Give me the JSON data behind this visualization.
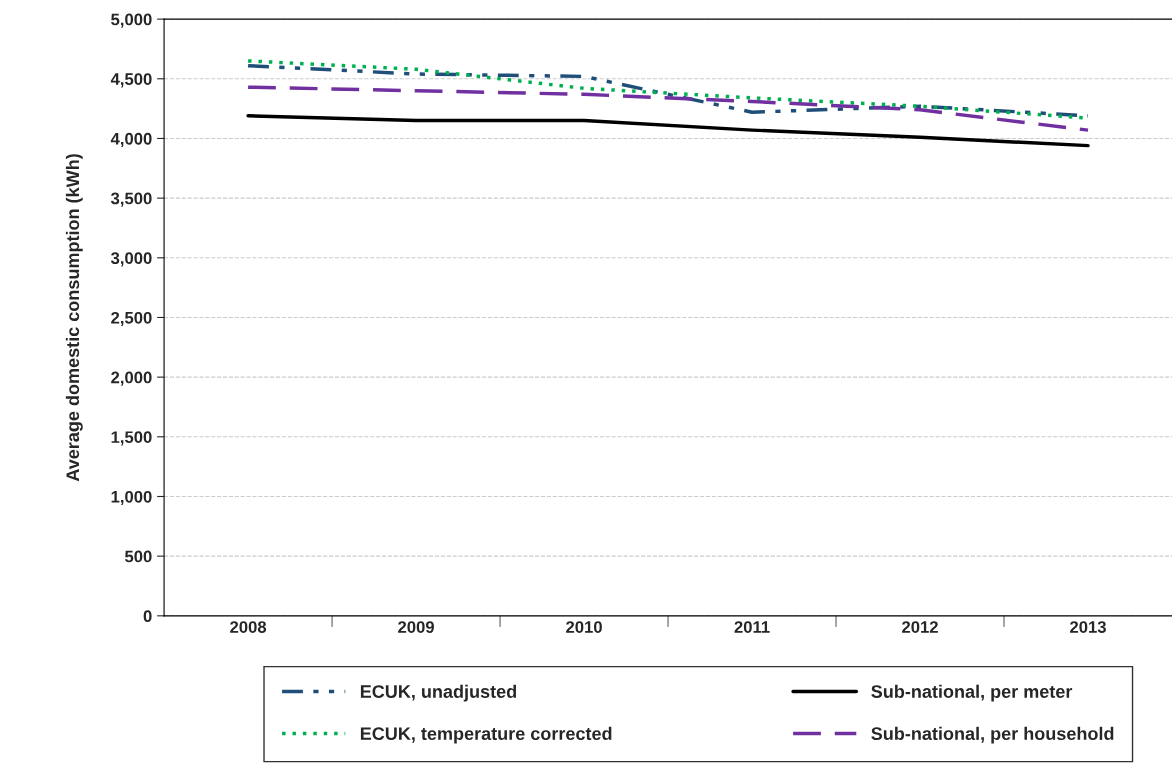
{
  "chart_data": {
    "type": "line",
    "ylabel": "Average domestic consumption (kWh)",
    "categories": [
      "2008",
      "2009",
      "2010",
      "2011",
      "2012",
      "2013"
    ],
    "series": [
      {
        "name": "ECUK, unadjusted",
        "color": "#1f4e79",
        "line_style": "dashdot",
        "values": [
          4610,
          4540,
          4520,
          4220,
          4270,
          4190
        ]
      },
      {
        "name": "ECUK, temperature corrected",
        "color": "#00b050",
        "line_style": "dotted",
        "values": [
          4650,
          4580,
          4420,
          4340,
          4270,
          4170
        ]
      },
      {
        "name": "Sub-national, per meter",
        "color": "#000000",
        "line_style": "solid",
        "values": [
          4190,
          4150,
          4150,
          4070,
          4010,
          3940
        ]
      },
      {
        "name": "Sub-national, per household",
        "color": "#7030a0",
        "line_style": "dashed",
        "values": [
          4430,
          4400,
          4370,
          4310,
          4240,
          4070
        ]
      }
    ],
    "ylim": [
      0,
      5000
    ],
    "yticks": [
      {
        "value": 0,
        "label": "0"
      },
      {
        "value": 500,
        "label": "500"
      },
      {
        "value": 1000,
        "label": "1,000"
      },
      {
        "value": 1500,
        "label": "1,500"
      },
      {
        "value": 2000,
        "label": "2,000"
      },
      {
        "value": 2500,
        "label": "2,500"
      },
      {
        "value": 3000,
        "label": "3,000"
      },
      {
        "value": 3500,
        "label": "3,500"
      },
      {
        "value": 4000,
        "label": "4,000"
      },
      {
        "value": 4500,
        "label": "4,500"
      },
      {
        "value": 5000,
        "label": "5,000"
      }
    ],
    "grid": "y",
    "legend": "bottom"
  }
}
